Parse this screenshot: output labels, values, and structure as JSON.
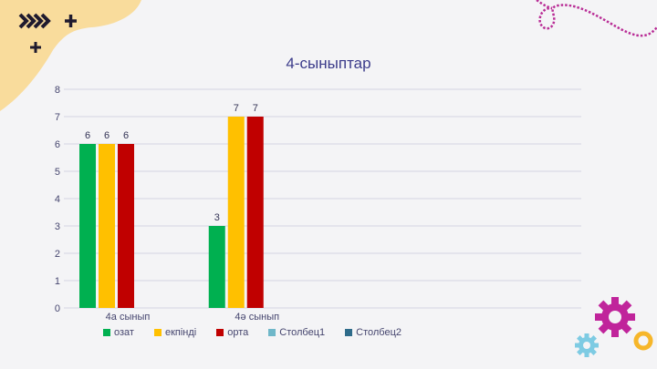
{
  "slide": {
    "title": "4-сыныптар",
    "colors": {
      "background": "#f4f4f6",
      "blob": "#f9dc9c",
      "accent_magenta": "#c0249b",
      "accent_blue": "#7ecbe3",
      "accent_yellow": "#f6b62a",
      "icon_dark": "#1f1a2e"
    }
  },
  "chart_data": {
    "type": "bar",
    "title": "4-сыныптар",
    "categories": [
      "4а сынып",
      "4ә сынып",
      "",
      ""
    ],
    "series": [
      {
        "name": "озат",
        "color": "#00b050",
        "values": [
          6,
          3,
          null,
          null
        ]
      },
      {
        "name": "екпінді",
        "color": "#ffc000",
        "values": [
          6,
          7,
          null,
          null
        ]
      },
      {
        "name": "орта",
        "color": "#c00000",
        "values": [
          6,
          7,
          null,
          null
        ]
      },
      {
        "name": "Столбец1",
        "color": "#6fb7c9",
        "values": [
          null,
          null,
          null,
          null
        ]
      },
      {
        "name": "Столбец2",
        "color": "#2e6b8a",
        "values": [
          null,
          null,
          null,
          null
        ]
      }
    ],
    "xlabel": "",
    "ylabel": "",
    "ylim": [
      0,
      8
    ],
    "yticks": [
      0,
      1,
      2,
      3,
      4,
      5,
      6,
      7,
      8
    ],
    "grid": true,
    "legend_position": "bottom",
    "data_labels": true
  },
  "legend": {
    "items": [
      {
        "label": "озат",
        "color": "#00b050"
      },
      {
        "label": "екпінді",
        "color": "#ffc000"
      },
      {
        "label": "орта",
        "color": "#c00000"
      },
      {
        "label": "Столбец1",
        "color": "#6fb7c9"
      },
      {
        "label": "Столбец2",
        "color": "#2e6b8a"
      }
    ]
  }
}
